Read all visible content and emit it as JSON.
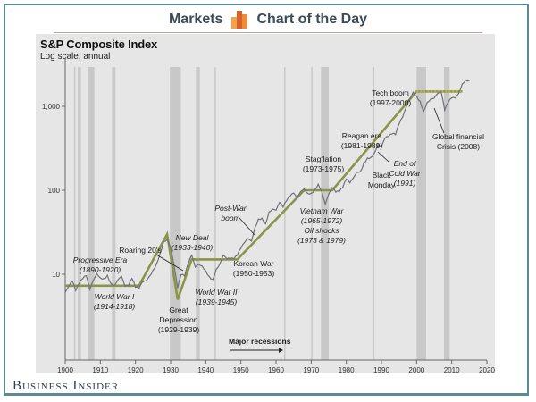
{
  "header": {
    "left_label": "Markets",
    "right_label": "Chart of the Day",
    "icon": "bar-chart-icon",
    "accent_color": "#e8772e"
  },
  "brand": {
    "name": "Business Insider"
  },
  "chart_data": {
    "type": "line",
    "title": "S&P Composite Index",
    "subtitle": "Log scale, annual",
    "xlabel": "",
    "ylabel": "",
    "xlim": [
      1900,
      2020
    ],
    "ylim": [
      1,
      3000
    ],
    "yscale": "log",
    "x_ticks": [
      "1900",
      "1910",
      "1920",
      "1930",
      "1940",
      "1950",
      "1960",
      "1970",
      "1980",
      "1990",
      "2000",
      "2010",
      "2020"
    ],
    "y_ticks": [
      {
        "value": 10,
        "label": "10"
      },
      {
        "value": 100,
        "label": "100"
      },
      {
        "value": 1000,
        "label": "1,000"
      }
    ],
    "grid": false,
    "colors": {
      "index_line": "#6f7278",
      "trend_line": "#8c9448",
      "recession_band": "#c8c8c8",
      "background": "#e6e6e6"
    },
    "recessions_label": "Major recessions",
    "recessions": [
      [
        1902.5,
        1902.8
      ],
      [
        1903.6,
        1904.5
      ],
      [
        1906.5,
        1908.3
      ],
      [
        1913.3,
        1914.3
      ],
      [
        1929.8,
        1932.9
      ],
      [
        1937.2,
        1938.3
      ],
      [
        1942.5,
        1942.7
      ],
      [
        1962.3,
        1962.5
      ],
      [
        1970.0,
        1970.3
      ],
      [
        1972.8,
        1975.0
      ],
      [
        1987.6,
        1987.8
      ],
      [
        2000.0,
        2002.7
      ],
      [
        2007.8,
        2009.4
      ]
    ],
    "series": [
      {
        "name": "S&P Composite Index",
        "x": [
          1900,
          1901,
          1902,
          1903,
          1904,
          1905,
          1906,
          1907,
          1908,
          1909,
          1910,
          1911,
          1912,
          1913,
          1914,
          1915,
          1916,
          1917,
          1918,
          1919,
          1920,
          1921,
          1922,
          1923,
          1924,
          1925,
          1926,
          1927,
          1928,
          1929,
          1930,
          1931,
          1932,
          1933,
          1934,
          1935,
          1936,
          1937,
          1938,
          1939,
          1940,
          1941,
          1942,
          1943,
          1944,
          1945,
          1946,
          1947,
          1948,
          1949,
          1950,
          1951,
          1952,
          1953,
          1954,
          1955,
          1956,
          1957,
          1958,
          1959,
          1960,
          1961,
          1962,
          1963,
          1964,
          1965,
          1966,
          1967,
          1968,
          1969,
          1970,
          1971,
          1972,
          1973,
          1974,
          1975,
          1976,
          1977,
          1978,
          1979,
          1980,
          1981,
          1982,
          1983,
          1984,
          1985,
          1986,
          1987,
          1988,
          1989,
          1990,
          1991,
          1992,
          1993,
          1994,
          1995,
          1996,
          1997,
          1998,
          1999,
          2000,
          2001,
          2002,
          2003,
          2004,
          2005,
          2006,
          2007,
          2008,
          2009,
          2010,
          2011,
          2012,
          2013,
          2014,
          2015
        ],
        "y": [
          6.1,
          7.2,
          8.3,
          6.4,
          7.8,
          8.9,
          9.6,
          6.6,
          8.5,
          10.2,
          9.1,
          8.9,
          9.7,
          7.8,
          7.4,
          8.6,
          9.5,
          7.2,
          7.3,
          8.9,
          7.0,
          6.8,
          8.1,
          8.4,
          9.5,
          11.2,
          13.4,
          17.7,
          24.4,
          26.0,
          21.0,
          12.5,
          6.9,
          9.9,
          9.5,
          13.4,
          16.8,
          12.2,
          13.2,
          12.5,
          11.0,
          9.4,
          8.7,
          11.5,
          13.3,
          16.9,
          15.3,
          15.3,
          15.2,
          16.8,
          20.4,
          23.8,
          26.6,
          24.8,
          36.0,
          45.5,
          46.7,
          39.9,
          55.2,
          59.9,
          58.1,
          71.6,
          63.1,
          75.0,
          84.8,
          92.4,
          80.3,
          96.5,
          103.9,
          92.1,
          92.2,
          102.1,
          118.1,
          97.6,
          68.6,
          90.2,
          107.5,
          95.1,
          96.1,
          107.9,
          135.8,
          122.6,
          140.6,
          164.9,
          167.2,
          211.3,
          242.2,
          247.1,
          277.7,
          353.4,
          330.2,
          417.1,
          435.7,
          466.5,
          459.3,
          615.9,
          740.7,
          970.4,
          1229.2,
          1469.3,
          1320.3,
          1148.1,
          879.8,
          1111.9,
          1211.9,
          1248.3,
          1418.3,
          1468.4,
          903.3,
          1115.1,
          1257.6,
          1257.6,
          1426.2,
          1848.4,
          2058.9,
          2043.9
        ]
      },
      {
        "name": "Trend",
        "x": [
          1900,
          1920,
          1921,
          1929,
          1932,
          1936,
          1949,
          1968,
          1973,
          1976,
          2000,
          2013
        ],
        "y": [
          7.3,
          7.3,
          7.3,
          30,
          5,
          15,
          15,
          100,
          100,
          100,
          1500,
          1500
        ]
      }
    ],
    "annotations": [
      {
        "text": "Progressive Era",
        "sub": "(1890-1920)",
        "style": "italic"
      },
      {
        "text": "World War I",
        "sub": "(1914-1918)",
        "style": "italic"
      },
      {
        "text": "Roaring 20's",
        "sub": "",
        "style": "normal"
      },
      {
        "text": "New Deal",
        "sub": "(1933-1940)",
        "style": "italic"
      },
      {
        "text": "Great",
        "sub": "Depression",
        "sub2": "(1929-1939)",
        "style": "normal"
      },
      {
        "text": "World War II",
        "sub": "(1939-1945)",
        "style": "italic"
      },
      {
        "text": "Korean War",
        "sub": "(1950-1953)",
        "style": "normal"
      },
      {
        "text": "Post-War",
        "sub": "boom",
        "style": "italic"
      },
      {
        "text": "Vietnam War",
        "sub": "(1965-1972)",
        "sub2": "Oil shocks",
        "sub3": "(1973 & 1979)",
        "style": "italic"
      },
      {
        "text": "Stagflation",
        "sub": "(1973-1975)",
        "style": "normal"
      },
      {
        "text": "Reagan era",
        "sub": "(1981-1989)",
        "style": "normal"
      },
      {
        "text": "Black",
        "sub": "Monday",
        "style": "normal"
      },
      {
        "text": "End of",
        "sub": "Cold War",
        "sub2": "(1991)",
        "style": "italic"
      },
      {
        "text": "Tech boom",
        "sub": "(1997-2000)",
        "style": "normal"
      },
      {
        "text": "Global financial",
        "sub": "Crisis (2008)",
        "style": "normal"
      }
    ]
  }
}
